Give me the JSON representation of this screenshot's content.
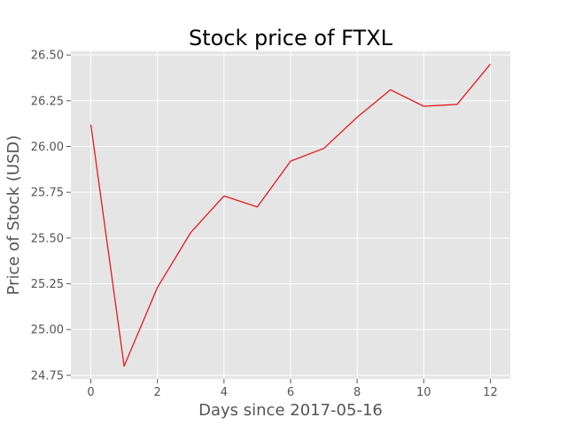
{
  "chart_data": {
    "type": "line",
    "title": "Stock price of FTXL",
    "xlabel": "Days since 2017-05-16",
    "ylabel": "Price of Stock (USD)",
    "x": [
      0,
      1,
      2,
      3,
      4,
      5,
      6,
      7,
      8,
      9,
      10,
      11,
      12
    ],
    "series": [
      {
        "values": [
          26.12,
          24.8,
          25.23,
          25.53,
          25.73,
          25.67,
          25.92,
          25.99,
          26.16,
          26.31,
          26.22,
          26.23,
          26.45
        ],
        "color": "#e41a1c"
      }
    ],
    "xticks": [
      0,
      2,
      4,
      6,
      8,
      10,
      12
    ],
    "xtick_labels": [
      "0",
      "2",
      "4",
      "6",
      "8",
      "10",
      "12"
    ],
    "yticks": [
      24.75,
      25.0,
      25.25,
      25.5,
      25.75,
      26.0,
      26.25,
      26.5
    ],
    "ytick_labels": [
      "24.75",
      "25.00",
      "25.25",
      "25.50",
      "25.75",
      "26.00",
      "26.25",
      "26.50"
    ],
    "xlim": [
      -0.6,
      12.6
    ],
    "ylim": [
      24.73,
      26.52
    ],
    "grid": true,
    "style": {
      "plot_background": "#e5e5e5",
      "grid_color": "#ffffff",
      "line_color": "#e41a1c",
      "tick_color": "#555555"
    }
  }
}
